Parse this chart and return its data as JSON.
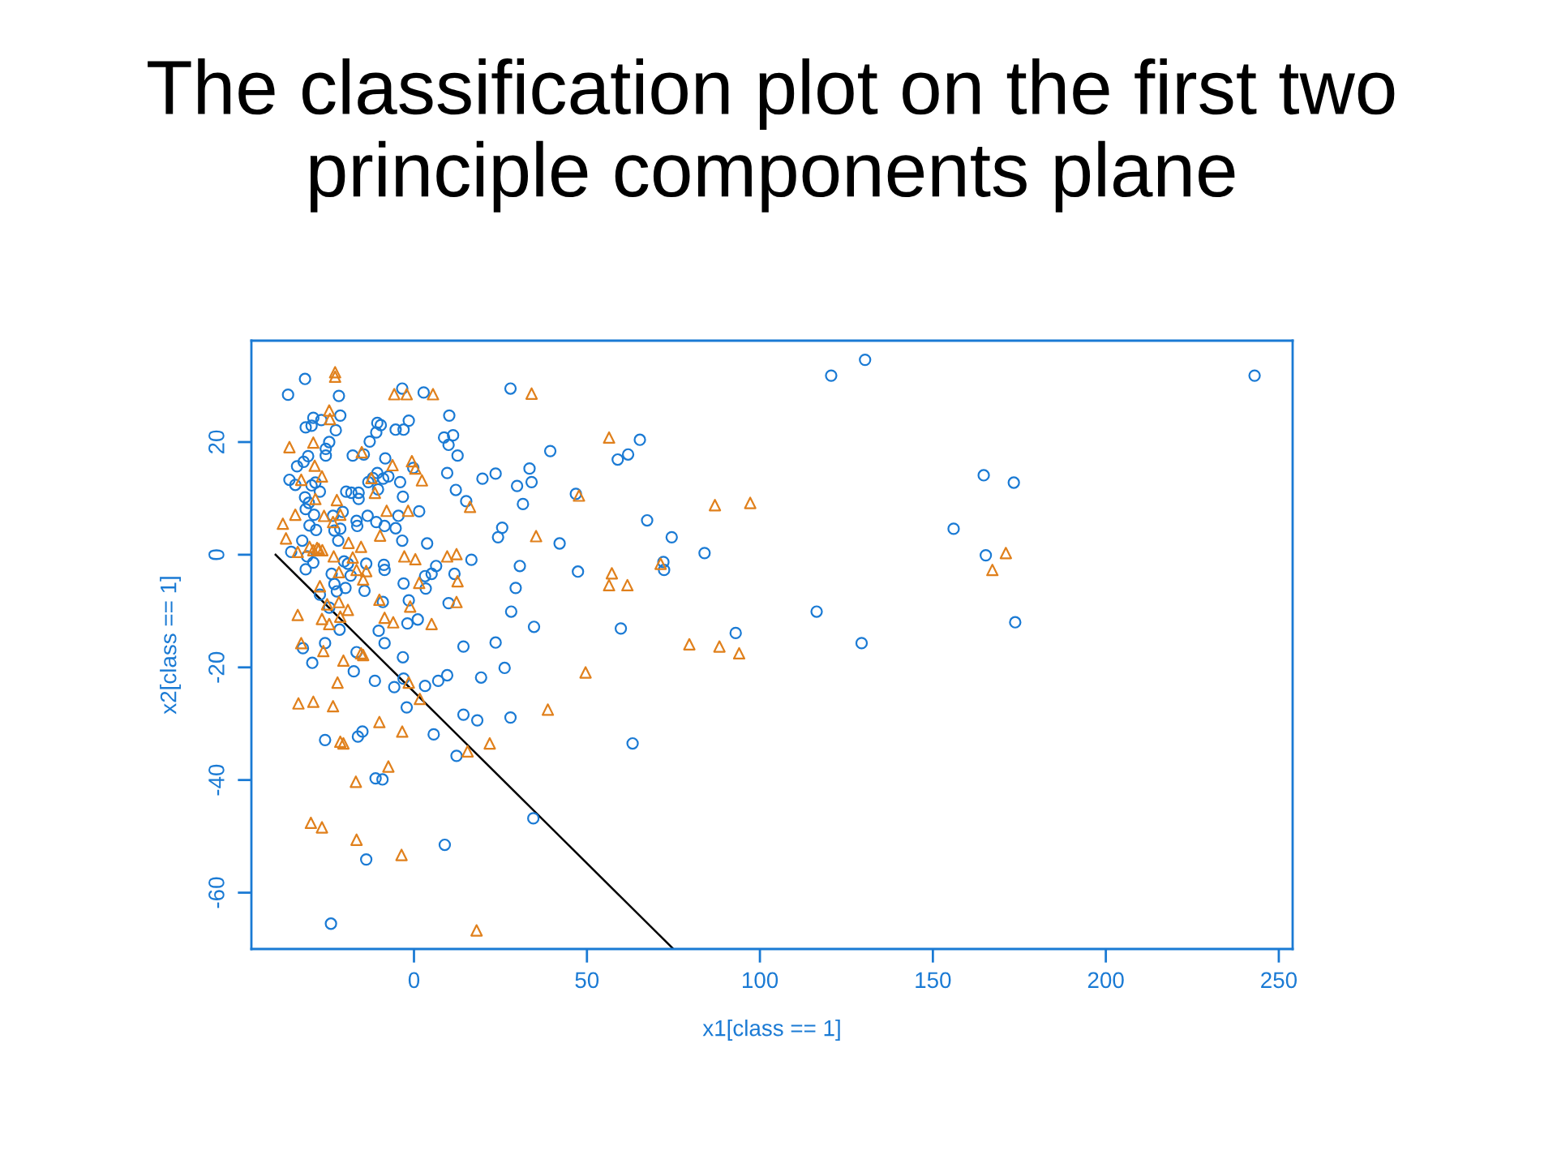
{
  "chart_data": {
    "type": "scatter",
    "title": "The classification plot on the first two principle components plane",
    "xlabel": "x1[class == 1]",
    "ylabel": "x2[class == 1]",
    "xlim": [
      -47,
      254
    ],
    "ylim": [
      -70,
      38
    ],
    "xticks": [
      0,
      50,
      100,
      150,
      200,
      250
    ],
    "yticks": [
      -60,
      -40,
      -20,
      0,
      20
    ],
    "series": [
      {
        "color": "#1a7ad4",
        "marker": "circle",
        "x": [
          243,
          130.4,
          120.6,
          164.7,
          173.4,
          156,
          165.3,
          173.8,
          116.4,
          129.4,
          93,
          84,
          74.5,
          67.4,
          72.1,
          72.3,
          65.3,
          61.9,
          58.9,
          59.8,
          63.2,
          42.1,
          47.4,
          46.8,
          39.4,
          33.4,
          34,
          31.5,
          30.6,
          29.4,
          34.7,
          28.1,
          27.9,
          29.8,
          25.5,
          24.3,
          23.6,
          19.8,
          23.6,
          26.2,
          19.4,
          27.9,
          18.3,
          14.3,
          34.5,
          8.9,
          12.3,
          5.7,
          9.6,
          7,
          3.2,
          -5.7,
          -2.1,
          -3,
          -3.2,
          14.3,
          10.2,
          8.7,
          11.3,
          10,
          12.6,
          9.6,
          12.1,
          15.1,
          16.6,
          11.7,
          10,
          6.4,
          5.1,
          3.8,
          3.2,
          3.4,
          1.5,
          -0.2,
          -1.5,
          2.8,
          -3.4,
          -3,
          -5.3,
          -4,
          -3.2,
          -4.5,
          -5.3,
          -3.4,
          -3,
          -1.5,
          -1.9,
          1.1,
          -9.6,
          -10.6,
          -10.9,
          -12.8,
          -8.3,
          -7.4,
          -8.9,
          -10.6,
          -11.9,
          -13.2,
          -10.4,
          -13.4,
          -10.9,
          -8.5,
          -16,
          -16,
          -17.7,
          -14.5,
          -19.6,
          -16.6,
          -16.4,
          -21.3,
          -20.2,
          -19.1,
          -18.3,
          -13.8,
          -8.7,
          -8.5,
          -9,
          -10.2,
          -8.5,
          -14.3,
          -19.8,
          -23.8,
          -23,
          -22.3,
          -27.2,
          -24.5,
          -21.5,
          -25.7,
          -32.1,
          -29.4,
          -16.6,
          -17.4,
          -11.3,
          -14.9,
          -16.2,
          -25.7,
          -11.1,
          -9.1,
          -13.8,
          -24,
          -36.4,
          -31.5,
          -21.7,
          -21.3,
          -22.6,
          -26.8,
          -29.1,
          -29.6,
          -31.3,
          -25.5,
          -25.5,
          -24.5,
          -30.6,
          -31.9,
          -33.8,
          -36,
          -34.3,
          -29.6,
          -28.5,
          -27.2,
          -31.5,
          -30.4,
          -31.3,
          -28.9,
          -30.2,
          -28.3,
          -32.3,
          -35.5,
          -30.9,
          -29.1,
          -31.3,
          -23.4,
          -23,
          -21.9,
          -20.6,
          -18.1
        ],
        "values": [
          31.8,
          34.6,
          31.8,
          14.1,
          12.8,
          4.6,
          -0.1,
          -12,
          -10.1,
          -15.7,
          -13.9,
          0.3,
          3.1,
          6.1,
          -1.3,
          -2.7,
          20.4,
          17.8,
          16.9,
          -13.1,
          -33.5,
          2,
          -3,
          10.8,
          18.4,
          15.3,
          12.9,
          9,
          -2,
          -5.9,
          -12.8,
          -10.1,
          29.5,
          12.2,
          4.8,
          3.1,
          14.4,
          13.5,
          -15.6,
          -20.1,
          -21.8,
          -28.9,
          -29.4,
          -28.4,
          -46.8,
          -51.5,
          -35.7,
          -31.9,
          -21.4,
          -22.4,
          -23.3,
          -23.5,
          -27.1,
          -22,
          -18.2,
          -16.3,
          24.7,
          20.8,
          21.2,
          19.5,
          17.6,
          14.5,
          11.5,
          9.5,
          -0.9,
          -3.4,
          -8.6,
          -2,
          -3.4,
          2,
          -3.8,
          -6,
          7.7,
          15.4,
          23.8,
          28.8,
          29.5,
          22.2,
          22.2,
          12.9,
          10.3,
          6.9,
          4.7,
          2.5,
          -5.1,
          -8.1,
          -12.2,
          -11.5,
          23,
          23.4,
          21.7,
          20.1,
          17.1,
          13.9,
          13.5,
          14.5,
          13.6,
          12.9,
          11.6,
          6.9,
          5.8,
          5.1,
          11,
          9.9,
          17.6,
          17.8,
          11.2,
          6,
          5.1,
          4.6,
          -1.2,
          -1.6,
          -3.7,
          -1.6,
          -1.8,
          -2.7,
          -8.4,
          -13.5,
          -15.7,
          -6.4,
          -5.9,
          -3.4,
          -5.2,
          -6.5,
          -7.1,
          -9.4,
          -13.3,
          -15.7,
          -16.6,
          -19.2,
          -17.3,
          -20.7,
          -22.4,
          -31.4,
          -32.3,
          -32.9,
          -39.7,
          -39.9,
          -54.1,
          -65.5,
          28.4,
          31.2,
          28.2,
          24.7,
          22.1,
          23.9,
          24.3,
          22.9,
          22.6,
          18.8,
          17.6,
          20,
          17.5,
          16.5,
          15.7,
          13.3,
          12.4,
          12.3,
          12.8,
          11.2,
          10.2,
          9.2,
          8.1,
          7.1,
          5.2,
          4.4,
          2.5,
          0.5,
          -0.3,
          -1.4,
          -2.6,
          6.9,
          4.3,
          2.5,
          7.6,
          11
        ]
      },
      {
        "color": "#e0801c",
        "marker": "triangle",
        "x": [
          97.2,
          87,
          171.1,
          167.2,
          79.6,
          88.3,
          94,
          56.4,
          57.2,
          56.4,
          61.7,
          71.3,
          49.6,
          47.7,
          35.3,
          34,
          38.7,
          21.9,
          18.1,
          15.5,
          16.2,
          12.3,
          12.6,
          12.3,
          9.6,
          5.1,
          2.3,
          0.4,
          -0.6,
          -2.1,
          -5.7,
          5.5,
          -1.7,
          -2.8,
          0.4,
          1.5,
          -1.1,
          -1.5,
          1.7,
          -3.4,
          -3.6,
          -7.4,
          -10,
          -6,
          -8.5,
          -10,
          -6.2,
          -7.9,
          -9.8,
          -11.3,
          -12.3,
          -15.1,
          -13.8,
          -14.7,
          -15.3,
          -15.3,
          -20.4,
          -22.1,
          -23.4,
          -21.3,
          -20.4,
          -16.8,
          -16.6,
          -29.8,
          -26.6,
          -33.4,
          -29.1,
          -32.6,
          -33.6,
          -26.2,
          -26.6,
          -24.5,
          -21.3,
          -19.1,
          -27.2,
          -37,
          -37.9,
          -34.3,
          -36,
          -32.6,
          -29.1,
          -28.7,
          -26.6,
          -28.5,
          -22.8,
          -22.8,
          -24.5,
          -24.3,
          -22.3,
          -21.3,
          -23.4,
          -26,
          -18.9,
          -23.2,
          -30.2,
          -29.1,
          -33.6,
          -17.7,
          -16.6,
          -21.7,
          -21.7,
          -25.1,
          -14.7,
          -27.5,
          -26.5,
          -28
        ],
        "values": [
          9.2,
          8.8,
          0.3,
          -2.7,
          -15.9,
          -16.3,
          -17.5,
          20.8,
          -3.3,
          -5.4,
          -5.4,
          -1.6,
          -20.9,
          10.5,
          3.3,
          28.6,
          -27.5,
          -33.5,
          -66.7,
          -34.9,
          8.5,
          0.1,
          -4.7,
          -8.4,
          -0.3,
          -12.3,
          13.2,
          15.3,
          16.6,
          28.5,
          28.5,
          28.5,
          7.8,
          -0.3,
          -0.8,
          -5,
          -9.2,
          -22.7,
          -25.6,
          -31.4,
          -53.3,
          -37.6,
          -29.7,
          -12,
          -11.2,
          -8,
          15.9,
          7.8,
          3.4,
          11,
          13.6,
          18.2,
          -2.9,
          -4.4,
          1.4,
          -17.5,
          -18.8,
          -22.7,
          -26.9,
          -33.2,
          -33.5,
          -40.3,
          -50.6,
          -47.6,
          -48.4,
          -26.4,
          -26.1,
          -15.7,
          -10.7,
          -17.1,
          -11.4,
          -12.3,
          -11,
          -9.8,
          -5.6,
          2.9,
          5.5,
          7.1,
          19.1,
          13.3,
          19.9,
          15.8,
          13.9,
          9.9,
          32.4,
          31.6,
          25.6,
          24.1,
          9.7,
          7.1,
          5.8,
          6.9,
          2.1,
          -0.3,
          1.4,
          0.8,
          0.5,
          -0.5,
          -2.7,
          -3.1,
          -8.4,
          -8.8,
          -17.8,
          1,
          0.8,
          1.2
        ]
      },
      {
        "type": "line",
        "color": "#000000",
        "line_style": "solid",
        "x": [
          -40,
          75
        ],
        "values": [
          0,
          -70
        ]
      }
    ]
  }
}
